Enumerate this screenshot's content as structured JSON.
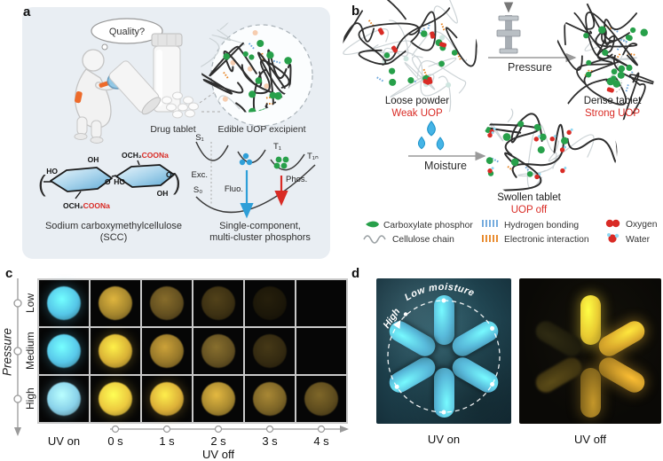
{
  "panel_a": {
    "label": "a",
    "thought_bubble": "Quality?",
    "drug_tablet_label": "Drug tablet",
    "excipient_label": "Edible UOP excipient",
    "chem": {
      "ho": "HO",
      "oh": "OH",
      "o": "O",
      "och2": "OCH₂",
      "coona": "COONa"
    },
    "scc_caption_line1": "Sodium carboxymethylcellulose",
    "scc_caption_line2": "(SCC)",
    "energy": {
      "s1": "S₁",
      "s0": "S₀",
      "t1": "T₁",
      "t1n": "T₁ₙ",
      "exc": "Exc.",
      "fluo": "Fluo.",
      "phos": "Phos."
    },
    "phosphor_caption_line1": "Single-component,",
    "phosphor_caption_line2": "multi-cluster phosphors"
  },
  "panel_b": {
    "label": "b",
    "pressure_label": "Pressure",
    "moisture_label": "Moisture",
    "loose_powder": {
      "title": "Loose powder",
      "status": "Weak UOP"
    },
    "dense_tablet": {
      "title": "Dense tablet",
      "status": "Strong UOP"
    },
    "swollen_tablet": {
      "title": "Swollen tablet",
      "status": "UOP off"
    },
    "legend": [
      {
        "icon": "carboxylate-phosphor-icon",
        "label": "Carboxylate phosphor"
      },
      {
        "icon": "cellulose-chain-icon",
        "label": "Cellulose chain"
      },
      {
        "icon": "hydrogen-bonding-icon",
        "label": "Hydrogen bonding"
      },
      {
        "icon": "electronic-interaction-icon",
        "label": "Electronic interaction"
      },
      {
        "icon": "oxygen-icon",
        "label": "Oxygen"
      },
      {
        "icon": "water-icon",
        "label": "Water"
      }
    ]
  },
  "panel_c": {
    "label": "c",
    "y_axis_label": "Pressure",
    "row_labels": [
      "Low",
      "Medium",
      "High"
    ],
    "col_labels": [
      "UV on",
      "0 s",
      "1 s",
      "2 s",
      "3 s",
      "4 s"
    ],
    "x_axis_label": "UV off",
    "tablet_colors": [
      [
        "#55c6e8",
        "#a5862e",
        "#645020",
        "#3d3113",
        "#1c1709",
        "#000000"
      ],
      [
        "#58c8ea",
        "#d9b236",
        "#97782a",
        "#655222",
        "#342a11",
        "#000000"
      ],
      [
        "#8ad2ea",
        "#ecc93f",
        "#dcb038",
        "#a98930",
        "#7d6527",
        "#5e4c1e"
      ]
    ]
  },
  "panel_d": {
    "label": "d",
    "arc_label": "Low moisture",
    "arrow_label": "High",
    "left_caption": "UV on",
    "right_caption": "UV off",
    "capsule_color": "#58b9da",
    "glow_colors": [
      "#e9cb33",
      "#dcab2d",
      "#bb8d26",
      "#91701f",
      "#443812",
      "#23200e"
    ]
  },
  "colors": {
    "red_text": "#d92b25",
    "phosphor_green": "#27a04a",
    "hydrogen_blue": "#6fa8dc",
    "electronic_orange": "#e8882a",
    "uv_cyan": "#55c6e8",
    "panel_a_bg": "#e9eef3"
  }
}
